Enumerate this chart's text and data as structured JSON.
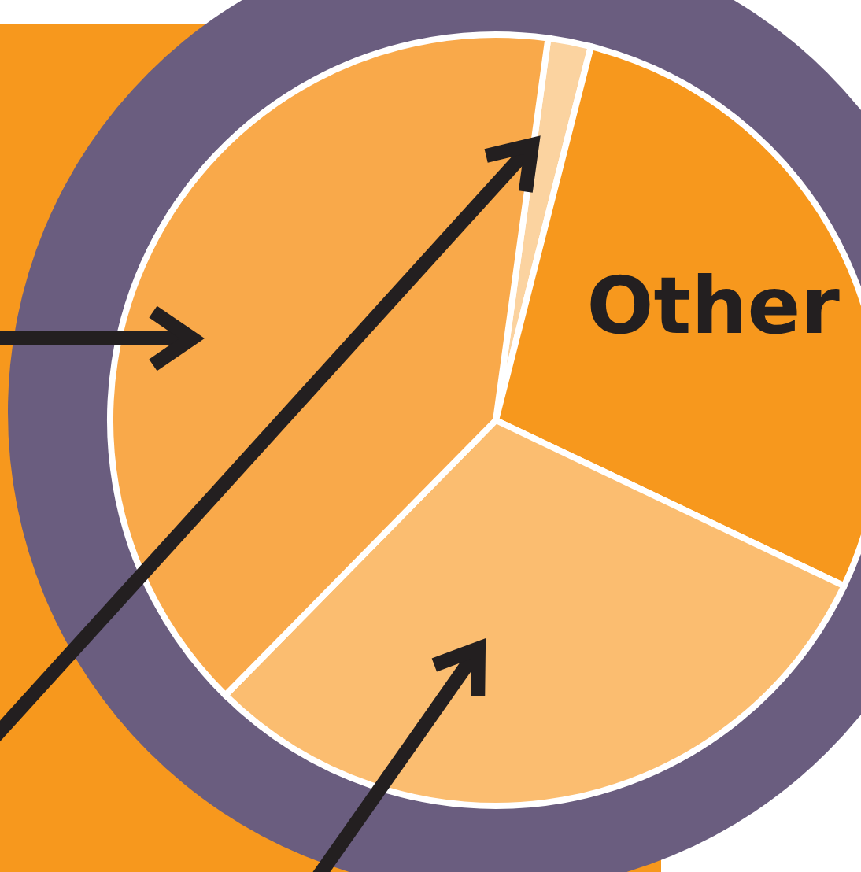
{
  "chart_data": {
    "type": "pie",
    "categories": [
      null,
      "Other",
      null,
      null
    ],
    "values": [
      1.8,
      28.1,
      30.3,
      39.8
    ],
    "colors": [
      "#fbd3a0",
      "#f7981d",
      "#fbbd70",
      "#f9a94a"
    ]
  }
}
